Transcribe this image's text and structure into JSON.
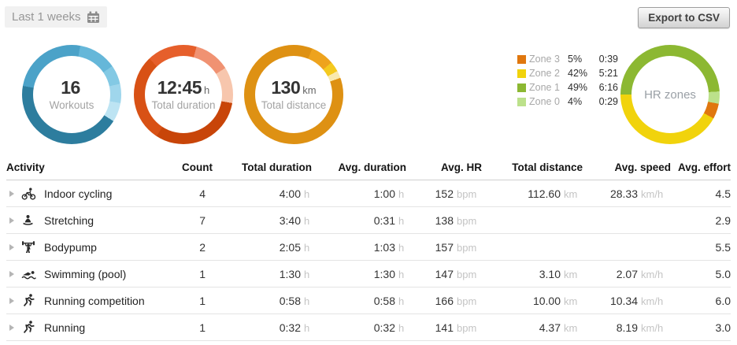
{
  "header": {
    "period_label": "Last 1 weeks",
    "export_label": "Export to CSV"
  },
  "donuts": [
    {
      "name": "workouts-donut",
      "value": "16",
      "unit": "",
      "label": "Workouts",
      "from": 280,
      "segments": [
        {
          "color": "#4BA2C8",
          "frac": 0.25
        },
        {
          "color": "#65B7D9",
          "frac": 0.125
        },
        {
          "color": "#83C9E4",
          "frac": 0.0625
        },
        {
          "color": "#9FD6EC",
          "frac": 0.0625
        },
        {
          "color": "#BDE4F3",
          "frac": 0.0625
        },
        {
          "color": "#2D7D9E",
          "frac": 0.4375
        }
      ]
    },
    {
      "name": "total-duration-donut",
      "value": "12:45",
      "unit": "h",
      "label": "Total duration",
      "from": 100,
      "segments": [
        {
          "color": "#C84509",
          "frac": 0.3137
        },
        {
          "color": "#D85115",
          "frac": 0.2876
        },
        {
          "color": "#E65F2B",
          "frac": 0.1634
        },
        {
          "color": "#F09272",
          "frac": 0.1176
        },
        {
          "color": "#F7C6AD",
          "frac": 0.1177
        }
      ]
    },
    {
      "name": "total-distance-donut",
      "value": "130",
      "unit": "km",
      "label": "Total distance",
      "from": 22,
      "segments": [
        {
          "color": "#EEA31D",
          "frac": 0.0769
        },
        {
          "color": "#F4C91F",
          "frac": 0.0336
        },
        {
          "color": "#F9E9AE",
          "frac": 0.0238
        },
        {
          "color": "#DE9113",
          "frac": 0.8657
        }
      ]
    }
  ],
  "hr_zones": {
    "label": "HR zones",
    "from": 270,
    "segments": [
      {
        "color": "#8CB832",
        "frac": 0.49
      },
      {
        "color": "#BCE18B",
        "frac": 0.04
      },
      {
        "color": "#E0770E",
        "frac": 0.05
      },
      {
        "color": "#F1D30C",
        "frac": 0.42
      }
    ],
    "legend": [
      {
        "name": "Zone 3",
        "color": "#E0770E",
        "percent": "5%",
        "time": "0:39"
      },
      {
        "name": "Zone 2",
        "color": "#F1D30C",
        "percent": "42%",
        "time": "5:21"
      },
      {
        "name": "Zone 1",
        "color": "#8CB832",
        "percent": "49%",
        "time": "6:16"
      },
      {
        "name": "Zone 0",
        "color": "#BCE18B",
        "percent": "4%",
        "time": "0:29"
      }
    ]
  },
  "table": {
    "columns": [
      "Activity",
      "Count",
      "Total duration",
      "Avg. duration",
      "Avg. HR",
      "Total distance",
      "Avg. speed",
      "Avg. effort"
    ],
    "units": {
      "total_duration": "h",
      "avg_duration": "h",
      "avg_hr": "bpm",
      "total_distance": "km",
      "avg_speed": "km/h"
    },
    "rows": [
      {
        "icon": "indoor-cycling-icon",
        "activity": "Indoor cycling",
        "count": "4",
        "total_duration": "4:00",
        "avg_duration": "1:00",
        "avg_hr": "152",
        "total_distance": "112.60",
        "avg_speed": "28.33",
        "avg_effort": "4.5"
      },
      {
        "icon": "stretching-icon",
        "activity": "Stretching",
        "count": "7",
        "total_duration": "3:40",
        "avg_duration": "0:31",
        "avg_hr": "138",
        "total_distance": "",
        "avg_speed": "",
        "avg_effort": "2.9"
      },
      {
        "icon": "bodypump-icon",
        "activity": "Bodypump",
        "count": "2",
        "total_duration": "2:05",
        "avg_duration": "1:03",
        "avg_hr": "157",
        "total_distance": "",
        "avg_speed": "",
        "avg_effort": "5.5"
      },
      {
        "icon": "swimming-pool-icon",
        "activity": "Swimming (pool)",
        "count": "1",
        "total_duration": "1:30",
        "avg_duration": "1:30",
        "avg_hr": "147",
        "total_distance": "3.10",
        "avg_speed": "2.07",
        "avg_effort": "5.0"
      },
      {
        "icon": "running-competition-icon",
        "activity": "Running competition",
        "count": "1",
        "total_duration": "0:58",
        "avg_duration": "0:58",
        "avg_hr": "166",
        "total_distance": "10.00",
        "avg_speed": "10.34",
        "avg_effort": "6.0"
      },
      {
        "icon": "running-icon",
        "activity": "Running",
        "count": "1",
        "total_duration": "0:32",
        "avg_duration": "0:32",
        "avg_hr": "141",
        "total_distance": "4.37",
        "avg_speed": "8.19",
        "avg_effort": "3.0"
      }
    ]
  }
}
